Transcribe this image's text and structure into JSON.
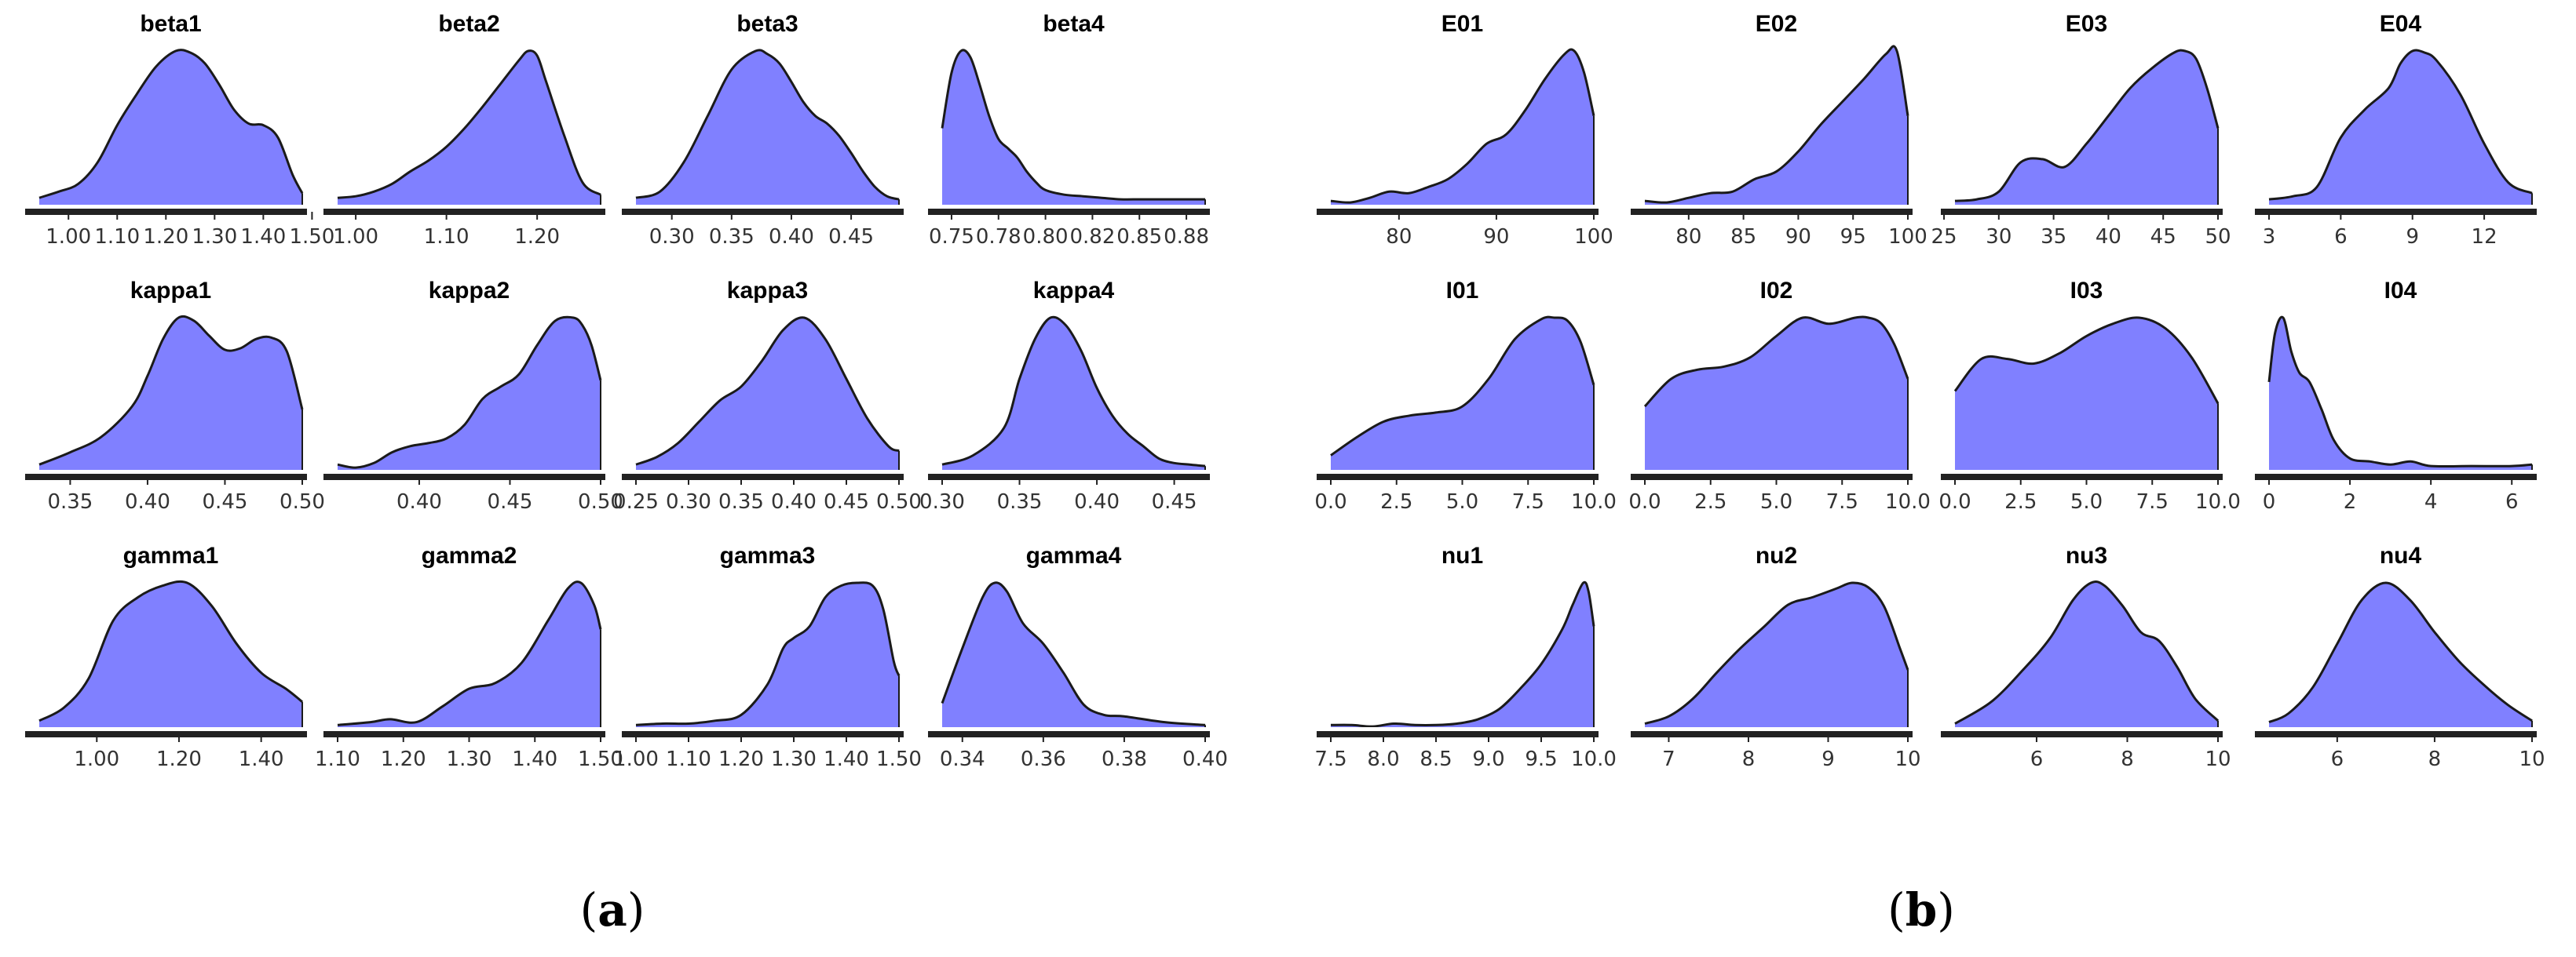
{
  "figure": {
    "captions": [
      {
        "open": "(",
        "letter": "a",
        "close": ")"
      },
      {
        "open": "(",
        "letter": "b",
        "close": ")"
      }
    ]
  },
  "style": {
    "fill": "#8080ff",
    "line": "#1a1a1a",
    "axis": "#222222",
    "baseline": "#ffffff"
  },
  "chart_data": [
    {
      "type": "area",
      "panel": "a",
      "row": 0,
      "col": 0,
      "title": "beta1",
      "xlim": [
        0.94,
        1.48
      ],
      "ticks": [
        1.0,
        1.1,
        1.2,
        1.3,
        1.4,
        1.5
      ],
      "tick_labels": [
        "1.00",
        "1.10",
        "1.20",
        "1.30",
        "1.40",
        "1.50"
      ],
      "x": [
        0.94,
        0.98,
        1.02,
        1.06,
        1.1,
        1.14,
        1.18,
        1.22,
        1.25,
        1.28,
        1.31,
        1.34,
        1.37,
        1.4,
        1.43,
        1.46,
        1.48
      ],
      "density": [
        0.05,
        0.09,
        0.14,
        0.28,
        0.52,
        0.72,
        0.9,
        1.0,
        0.99,
        0.92,
        0.78,
        0.62,
        0.53,
        0.52,
        0.44,
        0.2,
        0.08
      ]
    },
    {
      "type": "area",
      "panel": "a",
      "row": 0,
      "col": 1,
      "title": "beta2",
      "xlim": [
        0.98,
        1.27
      ],
      "ticks": [
        1.0,
        1.1,
        1.2
      ],
      "tick_labels": [
        "1.00",
        "1.10",
        "1.20"
      ],
      "x": [
        0.98,
        1.0,
        1.02,
        1.04,
        1.06,
        1.08,
        1.1,
        1.12,
        1.14,
        1.16,
        1.18,
        1.19,
        1.2,
        1.21,
        1.23,
        1.25,
        1.27
      ],
      "density": [
        0.05,
        0.06,
        0.09,
        0.14,
        0.22,
        0.29,
        0.38,
        0.5,
        0.64,
        0.79,
        0.94,
        1.0,
        0.97,
        0.8,
        0.45,
        0.15,
        0.07
      ]
    },
    {
      "type": "area",
      "panel": "a",
      "row": 0,
      "col": 2,
      "title": "beta3",
      "xlim": [
        0.27,
        0.49
      ],
      "ticks": [
        0.3,
        0.35,
        0.4,
        0.45
      ],
      "tick_labels": [
        "0.30",
        "0.35",
        "0.40",
        "0.45"
      ],
      "x": [
        0.27,
        0.29,
        0.31,
        0.33,
        0.35,
        0.37,
        0.38,
        0.39,
        0.4,
        0.41,
        0.42,
        0.43,
        0.44,
        0.45,
        0.46,
        0.47,
        0.48,
        0.49
      ],
      "density": [
        0.05,
        0.09,
        0.28,
        0.58,
        0.88,
        1.0,
        0.98,
        0.92,
        0.8,
        0.67,
        0.58,
        0.53,
        0.45,
        0.34,
        0.22,
        0.12,
        0.06,
        0.04
      ]
    },
    {
      "type": "area",
      "panel": "a",
      "row": 0,
      "col": 3,
      "title": "beta4",
      "xlim": [
        0.745,
        0.885
      ],
      "ticks": [
        0.75,
        0.775,
        0.8,
        0.825,
        0.85,
        0.875
      ],
      "tick_labels": [
        "0.75",
        "0.78",
        "0.80",
        "0.82",
        "0.85",
        "0.88"
      ],
      "x": [
        0.745,
        0.75,
        0.755,
        0.76,
        0.765,
        0.77,
        0.775,
        0.78,
        0.785,
        0.79,
        0.795,
        0.8,
        0.81,
        0.82,
        0.83,
        0.84,
        0.85,
        0.86,
        0.87,
        0.88,
        0.885
      ],
      "density": [
        0.5,
        0.86,
        1.0,
        0.96,
        0.78,
        0.58,
        0.43,
        0.37,
        0.31,
        0.22,
        0.15,
        0.1,
        0.07,
        0.06,
        0.05,
        0.04,
        0.04,
        0.04,
        0.04,
        0.04,
        0.04
      ]
    },
    {
      "type": "area",
      "panel": "a",
      "row": 1,
      "col": 0,
      "title": "kappa1",
      "xlim": [
        0.33,
        0.5
      ],
      "ticks": [
        0.35,
        0.4,
        0.45,
        0.5
      ],
      "tick_labels": [
        "0.35",
        "0.40",
        "0.45",
        "0.50"
      ],
      "x": [
        0.33,
        0.35,
        0.37,
        0.39,
        0.4,
        0.41,
        0.42,
        0.43,
        0.44,
        0.45,
        0.46,
        0.47,
        0.48,
        0.49,
        0.5
      ],
      "density": [
        0.04,
        0.12,
        0.22,
        0.42,
        0.62,
        0.86,
        1.0,
        0.98,
        0.88,
        0.79,
        0.8,
        0.86,
        0.87,
        0.78,
        0.4
      ]
    },
    {
      "type": "area",
      "panel": "a",
      "row": 1,
      "col": 1,
      "title": "kappa2",
      "xlim": [
        0.355,
        0.5
      ],
      "ticks": [
        0.4,
        0.45,
        0.5
      ],
      "tick_labels": [
        "0.40",
        "0.45",
        "0.50"
      ],
      "x": [
        0.355,
        0.365,
        0.375,
        0.385,
        0.395,
        0.405,
        0.415,
        0.425,
        0.435,
        0.445,
        0.455,
        0.465,
        0.475,
        0.485,
        0.49,
        0.495,
        0.5
      ],
      "density": [
        0.04,
        0.02,
        0.05,
        0.12,
        0.16,
        0.18,
        0.21,
        0.3,
        0.47,
        0.55,
        0.63,
        0.82,
        0.98,
        1.0,
        0.95,
        0.82,
        0.59
      ]
    },
    {
      "type": "area",
      "panel": "a",
      "row": 1,
      "col": 2,
      "title": "kappa3",
      "xlim": [
        0.25,
        0.5
      ],
      "ticks": [
        0.25,
        0.3,
        0.35,
        0.4,
        0.45,
        0.5
      ],
      "tick_labels": [
        "0.25",
        "0.30",
        "0.35",
        "0.40",
        "0.45",
        "0.50"
      ],
      "x": [
        0.25,
        0.27,
        0.29,
        0.31,
        0.33,
        0.35,
        0.37,
        0.39,
        0.41,
        0.43,
        0.45,
        0.47,
        0.49,
        0.5
      ],
      "density": [
        0.04,
        0.09,
        0.18,
        0.32,
        0.46,
        0.55,
        0.72,
        0.92,
        1.0,
        0.86,
        0.6,
        0.34,
        0.16,
        0.13
      ]
    },
    {
      "type": "area",
      "panel": "a",
      "row": 1,
      "col": 3,
      "title": "kappa4",
      "xlim": [
        0.3,
        0.47
      ],
      "ticks": [
        0.3,
        0.35,
        0.4,
        0.45
      ],
      "tick_labels": [
        "0.30",
        "0.35",
        "0.40",
        "0.45"
      ],
      "x": [
        0.3,
        0.32,
        0.34,
        0.35,
        0.36,
        0.37,
        0.38,
        0.39,
        0.4,
        0.41,
        0.42,
        0.43,
        0.44,
        0.45,
        0.46,
        0.47
      ],
      "density": [
        0.04,
        0.1,
        0.28,
        0.6,
        0.86,
        1.0,
        0.95,
        0.78,
        0.54,
        0.36,
        0.24,
        0.16,
        0.08,
        0.05,
        0.04,
        0.03
      ]
    },
    {
      "type": "area",
      "panel": "a",
      "row": 2,
      "col": 0,
      "title": "gamma1",
      "xlim": [
        0.86,
        1.5
      ],
      "ticks": [
        1.0,
        1.2,
        1.4
      ],
      "tick_labels": [
        "1.00",
        "1.20",
        "1.40"
      ],
      "x": [
        0.86,
        0.92,
        0.98,
        1.04,
        1.1,
        1.16,
        1.22,
        1.28,
        1.34,
        1.4,
        1.46,
        1.5
      ],
      "density": [
        0.05,
        0.14,
        0.34,
        0.74,
        0.9,
        0.98,
        1.0,
        0.84,
        0.58,
        0.38,
        0.27,
        0.18
      ]
    },
    {
      "type": "area",
      "panel": "a",
      "row": 2,
      "col": 1,
      "title": "gamma2",
      "xlim": [
        1.1,
        1.5
      ],
      "ticks": [
        1.1,
        1.2,
        1.3,
        1.4,
        1.5
      ],
      "tick_labels": [
        "1.10",
        "1.20",
        "1.30",
        "1.40",
        "1.50"
      ],
      "x": [
        1.1,
        1.15,
        1.18,
        1.22,
        1.26,
        1.3,
        1.34,
        1.38,
        1.42,
        1.45,
        1.47,
        1.49,
        1.5
      ],
      "density": [
        0.02,
        0.04,
        0.06,
        0.04,
        0.15,
        0.27,
        0.31,
        0.45,
        0.74,
        0.96,
        1.0,
        0.85,
        0.68
      ]
    },
    {
      "type": "area",
      "panel": "a",
      "row": 2,
      "col": 2,
      "title": "gamma3",
      "xlim": [
        1.0,
        1.5
      ],
      "ticks": [
        1.0,
        1.1,
        1.2,
        1.3,
        1.4,
        1.5
      ],
      "tick_labels": [
        "1.00",
        "1.10",
        "1.20",
        "1.30",
        "1.40",
        "1.50"
      ],
      "x": [
        1.0,
        1.05,
        1.1,
        1.15,
        1.2,
        1.25,
        1.28,
        1.3,
        1.33,
        1.36,
        1.39,
        1.42,
        1.45,
        1.47,
        1.49,
        1.5
      ],
      "density": [
        0.02,
        0.03,
        0.03,
        0.05,
        0.09,
        0.3,
        0.55,
        0.62,
        0.7,
        0.9,
        0.98,
        1.0,
        0.98,
        0.82,
        0.46,
        0.36
      ]
    },
    {
      "type": "area",
      "panel": "a",
      "row": 2,
      "col": 3,
      "title": "gamma4",
      "xlim": [
        0.335,
        0.4
      ],
      "ticks": [
        0.34,
        0.36,
        0.38,
        0.4
      ],
      "tick_labels": [
        "0.34",
        "0.36",
        "0.38",
        "0.40"
      ],
      "x": [
        0.335,
        0.34,
        0.345,
        0.348,
        0.351,
        0.355,
        0.36,
        0.365,
        0.37,
        0.375,
        0.38,
        0.39,
        0.4
      ],
      "density": [
        0.17,
        0.55,
        0.9,
        1.0,
        0.94,
        0.72,
        0.58,
        0.38,
        0.16,
        0.09,
        0.08,
        0.04,
        0.02
      ]
    },
    {
      "type": "area",
      "panel": "b",
      "row": 0,
      "col": 0,
      "title": "E01",
      "xlim": [
        73,
        100
      ],
      "ticks": [
        80,
        90,
        100
      ],
      "tick_labels": [
        "80",
        "90",
        "100"
      ],
      "x": [
        73,
        75,
        77,
        79,
        81,
        83,
        85,
        87,
        89,
        91,
        93,
        95,
        97,
        98,
        99,
        100
      ],
      "density": [
        0.03,
        0.02,
        0.05,
        0.09,
        0.08,
        0.12,
        0.17,
        0.27,
        0.4,
        0.46,
        0.62,
        0.82,
        0.98,
        1.0,
        0.86,
        0.58
      ]
    },
    {
      "type": "area",
      "panel": "b",
      "row": 0,
      "col": 1,
      "title": "E02",
      "xlim": [
        76,
        100
      ],
      "ticks": [
        80,
        85,
        90,
        95,
        100
      ],
      "tick_labels": [
        "80",
        "85",
        "90",
        "95",
        "100"
      ],
      "x": [
        76,
        78,
        80,
        82,
        84,
        86,
        88,
        90,
        92,
        94,
        96,
        98,
        99,
        100
      ],
      "density": [
        0.03,
        0.02,
        0.05,
        0.08,
        0.09,
        0.17,
        0.22,
        0.35,
        0.52,
        0.67,
        0.82,
        0.98,
        1.0,
        0.58
      ]
    },
    {
      "type": "area",
      "panel": "b",
      "row": 0,
      "col": 2,
      "title": "E03",
      "xlim": [
        26,
        50
      ],
      "ticks": [
        25,
        30,
        35,
        40,
        45,
        50
      ],
      "tick_labels": [
        "25",
        "30",
        "35",
        "40",
        "45",
        "50"
      ],
      "x": [
        26,
        28,
        30,
        32,
        34,
        36,
        38,
        40,
        42,
        44,
        46,
        47,
        48,
        49,
        50
      ],
      "density": [
        0.03,
        0.04,
        0.09,
        0.28,
        0.3,
        0.25,
        0.4,
        0.58,
        0.76,
        0.89,
        0.99,
        1.0,
        0.95,
        0.76,
        0.5
      ]
    },
    {
      "type": "area",
      "panel": "b",
      "row": 0,
      "col": 3,
      "title": "E04",
      "xlim": [
        3,
        14
      ],
      "ticks": [
        3,
        6,
        9,
        12
      ],
      "tick_labels": [
        "3",
        "6",
        "9",
        "12"
      ],
      "x": [
        3,
        4,
        5,
        6,
        7,
        8,
        8.5,
        9,
        9.5,
        10,
        11,
        12,
        13,
        14
      ],
      "density": [
        0.04,
        0.06,
        0.12,
        0.44,
        0.62,
        0.76,
        0.92,
        1.0,
        0.99,
        0.94,
        0.72,
        0.4,
        0.15,
        0.08
      ]
    },
    {
      "type": "area",
      "panel": "b",
      "row": 1,
      "col": 0,
      "title": "I01",
      "xlim": [
        0,
        10
      ],
      "ticks": [
        0,
        2.5,
        5,
        7.5,
        10
      ],
      "tick_labels": [
        "0.0",
        "2.5",
        "5.0",
        "7.5",
        "10.0"
      ],
      "x": [
        0,
        1,
        2,
        3,
        4,
        5,
        6,
        7,
        8,
        8.5,
        9,
        9.5,
        10
      ],
      "density": [
        0.1,
        0.22,
        0.32,
        0.36,
        0.38,
        0.42,
        0.6,
        0.86,
        0.99,
        1.0,
        0.98,
        0.84,
        0.56
      ]
    },
    {
      "type": "area",
      "panel": "b",
      "row": 1,
      "col": 1,
      "title": "I02",
      "xlim": [
        0,
        10
      ],
      "ticks": [
        0,
        2.5,
        5,
        7.5,
        10
      ],
      "tick_labels": [
        "0.0",
        "2.5",
        "5.0",
        "7.5",
        "10.0"
      ],
      "x": [
        0,
        1,
        2,
        3,
        4,
        5,
        6,
        7,
        8,
        8.5,
        9,
        9.5,
        10
      ],
      "density": [
        0.42,
        0.6,
        0.66,
        0.68,
        0.74,
        0.88,
        1.0,
        0.96,
        1.0,
        1.0,
        0.96,
        0.82,
        0.6
      ]
    },
    {
      "type": "area",
      "panel": "b",
      "row": 1,
      "col": 2,
      "title": "I03",
      "xlim": [
        0,
        10
      ],
      "ticks": [
        0,
        2.5,
        5,
        7.5,
        10
      ],
      "tick_labels": [
        "0.0",
        "2.5",
        "5.0",
        "7.5",
        "10.0"
      ],
      "x": [
        0,
        1,
        2,
        3,
        4,
        5,
        6,
        7,
        8,
        9,
        10
      ],
      "density": [
        0.52,
        0.73,
        0.73,
        0.7,
        0.77,
        0.88,
        0.96,
        1.0,
        0.93,
        0.74,
        0.44
      ]
    },
    {
      "type": "area",
      "panel": "b",
      "row": 1,
      "col": 3,
      "title": "I04",
      "xlim": [
        0,
        6.5
      ],
      "ticks": [
        0,
        2,
        4,
        6
      ],
      "tick_labels": [
        "0",
        "2",
        "4",
        "6"
      ],
      "x": [
        0,
        0.15,
        0.35,
        0.55,
        0.75,
        1.0,
        1.3,
        1.6,
        2.0,
        2.5,
        3.0,
        3.5,
        4.0,
        5.0,
        6.0,
        6.5
      ],
      "density": [
        0.58,
        0.9,
        1.0,
        0.78,
        0.64,
        0.58,
        0.4,
        0.2,
        0.08,
        0.06,
        0.04,
        0.06,
        0.03,
        0.03,
        0.03,
        0.04
      ]
    },
    {
      "type": "area",
      "panel": "b",
      "row": 2,
      "col": 0,
      "title": "nu1",
      "xlim": [
        7.5,
        10
      ],
      "ticks": [
        7.5,
        8,
        8.5,
        9,
        9.5,
        10
      ],
      "tick_labels": [
        "7.5",
        "8.0",
        "8.5",
        "9.0",
        "9.5",
        "10.0"
      ],
      "x": [
        7.5,
        7.7,
        7.9,
        8.1,
        8.3,
        8.5,
        8.7,
        8.9,
        9.1,
        9.3,
        9.5,
        9.7,
        9.8,
        9.9,
        9.95,
        10.0
      ],
      "density": [
        0.02,
        0.02,
        0.01,
        0.03,
        0.02,
        0.02,
        0.03,
        0.06,
        0.13,
        0.27,
        0.44,
        0.68,
        0.85,
        1.0,
        0.94,
        0.7
      ]
    },
    {
      "type": "area",
      "panel": "b",
      "row": 2,
      "col": 1,
      "title": "nu2",
      "xlim": [
        6.7,
        10
      ],
      "ticks": [
        7,
        8,
        9,
        10
      ],
      "tick_labels": [
        "7",
        "8",
        "9",
        "10"
      ],
      "x": [
        6.7,
        7.0,
        7.3,
        7.6,
        7.9,
        8.2,
        8.5,
        8.8,
        9.1,
        9.3,
        9.5,
        9.7,
        9.9,
        10.0
      ],
      "density": [
        0.03,
        0.08,
        0.2,
        0.38,
        0.55,
        0.7,
        0.85,
        0.9,
        0.96,
        1.0,
        0.97,
        0.84,
        0.55,
        0.4
      ]
    },
    {
      "type": "area",
      "panel": "b",
      "row": 2,
      "col": 2,
      "title": "nu3",
      "xlim": [
        4.2,
        10
      ],
      "ticks": [
        6,
        8,
        10
      ],
      "tick_labels": [
        "6",
        "8",
        "10"
      ],
      "x": [
        4.2,
        5.0,
        5.7,
        6.3,
        6.8,
        7.2,
        7.5,
        7.9,
        8.3,
        8.7,
        9.1,
        9.5,
        10.0
      ],
      "density": [
        0.03,
        0.18,
        0.4,
        0.62,
        0.88,
        1.0,
        0.98,
        0.84,
        0.66,
        0.6,
        0.42,
        0.2,
        0.05
      ]
    },
    {
      "type": "area",
      "panel": "b",
      "row": 2,
      "col": 3,
      "title": "nu4",
      "xlim": [
        4.6,
        10
      ],
      "ticks": [
        6,
        8,
        10
      ],
      "tick_labels": [
        "6",
        "8",
        "10"
      ],
      "x": [
        4.6,
        5.0,
        5.5,
        6.0,
        6.5,
        7.0,
        7.5,
        8.0,
        8.5,
        9.0,
        9.5,
        10.0
      ],
      "density": [
        0.04,
        0.1,
        0.28,
        0.58,
        0.88,
        1.0,
        0.88,
        0.66,
        0.46,
        0.3,
        0.16,
        0.05
      ]
    }
  ]
}
